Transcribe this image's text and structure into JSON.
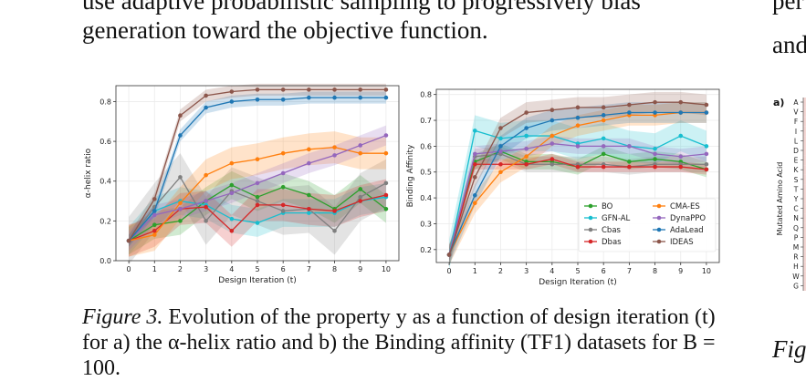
{
  "text": {
    "line1": "use adaptive probabilistic sampling to progressively bias",
    "line2": "generation toward the objective function.",
    "right1": "per",
    "right2": "and",
    "right3": "Fig",
    "caption_label": "Figure 3.",
    "caption_body": "Evolution of the property y as a function of design iteration (t) for a) the α-helix ratio and b) the Binding affinity (TF1) datasets for B = 100.",
    "side_panel_label": "a)",
    "side_ylabel": "Mutated Amino Acid",
    "side_letters": [
      "A",
      "V",
      "F",
      "I",
      "L",
      "D",
      "E",
      "K",
      "S",
      "T",
      "Y",
      "C",
      "N",
      "Q",
      "P",
      "M",
      "R",
      "H",
      "W",
      "G"
    ]
  },
  "chart_data": [
    {
      "type": "line",
      "xlabel": "Design Iteration (t)",
      "ylabel": "α-helix ratio",
      "x": [
        0,
        1,
        2,
        3,
        4,
        5,
        6,
        7,
        8,
        9,
        10
      ],
      "xlim": [
        -0.5,
        10.5
      ],
      "ylim": [
        0,
        0.88
      ],
      "yticks": [
        0.0,
        0.2,
        0.4,
        0.6,
        0.8
      ],
      "ytick_labels": [
        "0.0",
        "0.2",
        "0.4",
        "0.6",
        "0.8"
      ],
      "grid": true,
      "series": [
        {
          "name": "BO",
          "color": "#2ca02c",
          "values": [
            0.1,
            0.18,
            0.2,
            0.3,
            0.38,
            0.32,
            0.37,
            0.33,
            0.26,
            0.36,
            0.26
          ],
          "band": 0.07
        },
        {
          "name": "GFN-AL",
          "color": "#17becf",
          "values": [
            0.1,
            0.25,
            0.3,
            0.28,
            0.21,
            0.19,
            0.24,
            0.24,
            0.24,
            0.3,
            0.32
          ],
          "band": 0.07
        },
        {
          "name": "Cbas",
          "color": "#7f7f7f",
          "values": [
            0.1,
            0.27,
            0.42,
            0.2,
            0.35,
            0.3,
            0.25,
            0.26,
            0.15,
            0.32,
            0.39
          ],
          "band": 0.12
        },
        {
          "name": "Dbas",
          "color": "#d62728",
          "values": [
            0.1,
            0.15,
            0.26,
            0.27,
            0.15,
            0.28,
            0.28,
            0.26,
            0.25,
            0.3,
            0.33
          ],
          "band": 0.08
        },
        {
          "name": "CMA-ES",
          "color": "#ff7f0e",
          "values": [
            0.1,
            0.13,
            0.29,
            0.43,
            0.49,
            0.51,
            0.54,
            0.56,
            0.57,
            0.54,
            0.54
          ],
          "band": 0.08
        },
        {
          "name": "DynaPPO",
          "color": "#9467bd",
          "values": [
            0.1,
            0.23,
            0.26,
            0.3,
            0.34,
            0.39,
            0.44,
            0.49,
            0.53,
            0.58,
            0.63
          ],
          "band": 0.05
        },
        {
          "name": "AdaLead",
          "color": "#1f77b4",
          "values": [
            0.1,
            0.25,
            0.63,
            0.77,
            0.8,
            0.81,
            0.81,
            0.82,
            0.82,
            0.82,
            0.82
          ],
          "band": 0.03
        },
        {
          "name": "IDEAS",
          "color": "#8c564b",
          "values": [
            0.1,
            0.31,
            0.73,
            0.83,
            0.85,
            0.86,
            0.86,
            0.86,
            0.86,
            0.86,
            0.86
          ],
          "band": 0.03
        }
      ]
    },
    {
      "type": "line",
      "xlabel": "Design Iteration (t)",
      "ylabel": "Binding Affinity",
      "x": [
        0,
        1,
        2,
        3,
        4,
        5,
        6,
        7,
        8,
        9,
        10
      ],
      "xlim": [
        -0.5,
        10.5
      ],
      "ylim": [
        0.15,
        0.82
      ],
      "yticks": [
        0.2,
        0.3,
        0.4,
        0.5,
        0.6,
        0.7,
        0.8
      ],
      "ytick_labels": [
        "0.2",
        "0.3",
        "0.4",
        "0.5",
        "0.6",
        "0.7",
        "0.8"
      ],
      "grid": true,
      "legend": "lower-right",
      "series": [
        {
          "name": "BO",
          "color": "#2ca02c",
          "values": [
            0.18,
            0.54,
            0.58,
            0.54,
            0.54,
            0.52,
            0.57,
            0.54,
            0.55,
            0.54,
            0.51
          ],
          "band": 0.03
        },
        {
          "name": "GFN-AL",
          "color": "#17becf",
          "values": [
            0.18,
            0.66,
            0.63,
            0.64,
            0.64,
            0.61,
            0.63,
            0.6,
            0.59,
            0.64,
            0.6
          ],
          "band": 0.06
        },
        {
          "name": "Cbas",
          "color": "#7f7f7f",
          "values": [
            0.18,
            0.56,
            0.57,
            0.53,
            0.53,
            0.53,
            0.53,
            0.52,
            0.53,
            0.53,
            0.53
          ],
          "band": 0.03
        },
        {
          "name": "Dbas",
          "color": "#d62728",
          "values": [
            0.18,
            0.53,
            0.53,
            0.53,
            0.55,
            0.52,
            0.52,
            0.52,
            0.52,
            0.52,
            0.51
          ],
          "band": 0.02
        },
        {
          "name": "CMA-ES",
          "color": "#ff7f0e",
          "values": [
            0.18,
            0.38,
            0.5,
            0.56,
            0.64,
            0.68,
            0.7,
            0.72,
            0.72,
            0.73,
            0.73
          ],
          "band": 0.04
        },
        {
          "name": "DynaPPO",
          "color": "#9467bd",
          "values": [
            0.18,
            0.57,
            0.58,
            0.59,
            0.61,
            0.6,
            0.6,
            0.6,
            0.57,
            0.56,
            0.57
          ],
          "band": 0.03
        },
        {
          "name": "AdaLead",
          "color": "#1f77b4",
          "values": [
            0.18,
            0.41,
            0.6,
            0.67,
            0.7,
            0.71,
            0.72,
            0.73,
            0.73,
            0.73,
            0.73
          ],
          "band": 0.04
        },
        {
          "name": "IDEAS",
          "color": "#8c564b",
          "values": [
            0.18,
            0.48,
            0.67,
            0.73,
            0.74,
            0.75,
            0.75,
            0.76,
            0.77,
            0.77,
            0.76
          ],
          "band": 0.04
        }
      ]
    }
  ]
}
